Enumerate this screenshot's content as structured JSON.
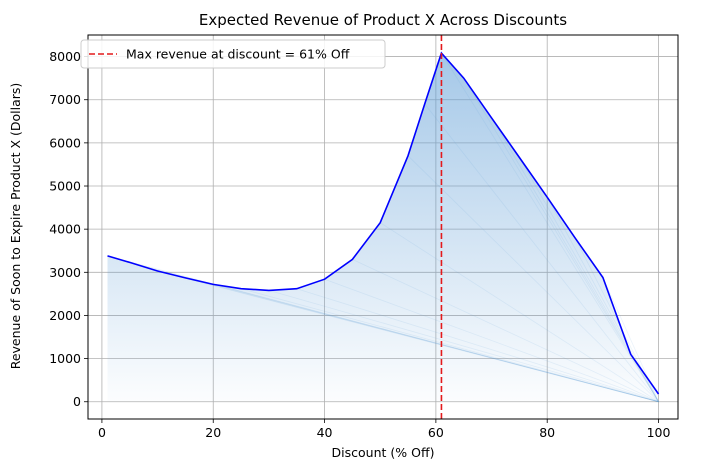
{
  "chart_data": {
    "type": "line",
    "title": "Expected Revenue of Product X Across Discounts",
    "xlabel": "Discount (% Off)",
    "ylabel": "Revenue of Soon to Expire Product X (Dollars)",
    "xlim": [
      -2.5,
      103.5
    ],
    "ylim": [
      -400,
      8500
    ],
    "xticks": [
      0,
      20,
      40,
      60,
      80,
      100
    ],
    "yticks": [
      0,
      1000,
      2000,
      3000,
      4000,
      5000,
      6000,
      7000,
      8000
    ],
    "grid": true,
    "legend_position": "top-left",
    "series": [
      {
        "name": "",
        "color": "#0000ff",
        "x": [
          1,
          5,
          10,
          15,
          20,
          25,
          30,
          35,
          40,
          45,
          50,
          55,
          58,
          61,
          65,
          70,
          75,
          80,
          85,
          90,
          95,
          100
        ],
        "y": [
          3380,
          3230,
          3030,
          2870,
          2720,
          2620,
          2580,
          2620,
          2840,
          3300,
          4150,
          5700,
          6900,
          8080,
          7500,
          6580,
          5660,
          4740,
          3800,
          2880,
          1100,
          180
        ]
      }
    ],
    "fill": {
      "color": "#5b9bd5",
      "description": "gradient fill from curve to zero"
    },
    "reference_line": {
      "x": 61,
      "color": "#e31a1c",
      "style": "dashed",
      "label": "Max revenue at discount = 61% Off"
    }
  }
}
